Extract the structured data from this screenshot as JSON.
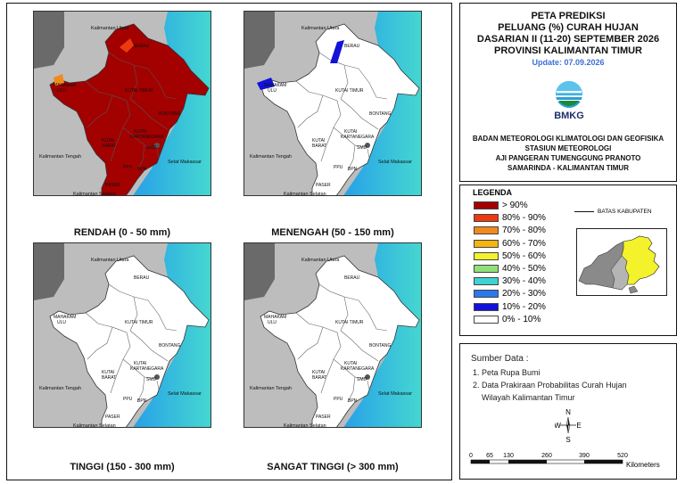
{
  "maps": [
    {
      "id": "rendah",
      "title": "RENDAH (0 - 50 mm)"
    },
    {
      "id": "menengah",
      "title": "MENENGAH (50 - 150 mm)"
    },
    {
      "id": "tinggi",
      "title": "TINGGI (150 - 300 mm)"
    },
    {
      "id": "sangat",
      "title": "SANGAT TINGGI (> 300 mm)"
    }
  ],
  "map_labels": {
    "kaltara": "Kalimantan Utara",
    "kalteng": "Kalimantan Tengah",
    "kalsel": "Kalimantan Selatan",
    "selat": "Selat Makassar",
    "berau": "BERAU",
    "mahakam1": "MAHAKAM",
    "mahakam2": "ULU",
    "kutim": "KUTAI TIMUR",
    "bontang": "BONTANG",
    "kukar1": "KUTAI",
    "kukar2": "KARTANEGARA",
    "kubar1": "KUTAI",
    "kubar2": "BARAT",
    "smd": "SMD",
    "ppu": "PPU",
    "bpn": "BPN",
    "paser": "PASER"
  },
  "header": {
    "title_lines": [
      "PETA PREDIKSI",
      "PELUANG (%) CURAH HUJAN",
      "DASARIAN II (11-20) SEPTEMBER 2026",
      "PROVINSI KALIMANTAN TIMUR"
    ],
    "update": "Update: 07.09.2026",
    "logo_text": "BMKG",
    "org_lines": [
      "BADAN METEOROLOGI KLIMATOLOGI DAN GEOFISIKA",
      "STASIUN METEOROLOGI",
      "AJI PANGERAN TUMENGGUNG PRANOTO",
      "SAMARINDA - KALIMANTAN TIMUR"
    ]
  },
  "legend": {
    "title": "LEGENDA",
    "boundary_label": "BATAS KABUPATEN",
    "items": [
      {
        "label": "> 90%",
        "color": "#a30000"
      },
      {
        "label": "80% - 90%",
        "color": "#ea3b10"
      },
      {
        "label": "70% - 80%",
        "color": "#f08a1e"
      },
      {
        "label": "60% - 70%",
        "color": "#f5b50f"
      },
      {
        "label": "50% - 60%",
        "color": "#f4f22a"
      },
      {
        "label": "40% - 50%",
        "color": "#8fe07a"
      },
      {
        "label": "30% - 40%",
        "color": "#3fd2d2"
      },
      {
        "label": "20% - 30%",
        "color": "#2b78ec"
      },
      {
        "label": "10% - 20%",
        "color": "#1212d8"
      },
      {
        "label": "0% - 10%",
        "color": "#ffffff"
      }
    ]
  },
  "sources": {
    "title": "Sumber Data :",
    "items": [
      "1. Peta Rupa Bumi",
      "2. Data Prakiraan Probabilitas Curah Hujan"
    ],
    "continuation": "Wilayah Kalimantan Timur"
  },
  "compass": {
    "n": "N",
    "s": "S",
    "e": "E",
    "w": "W"
  },
  "scalebar": {
    "ticks": [
      "0",
      "65",
      "130",
      "260",
      "390",
      "520"
    ],
    "unit": "Kilometers"
  }
}
